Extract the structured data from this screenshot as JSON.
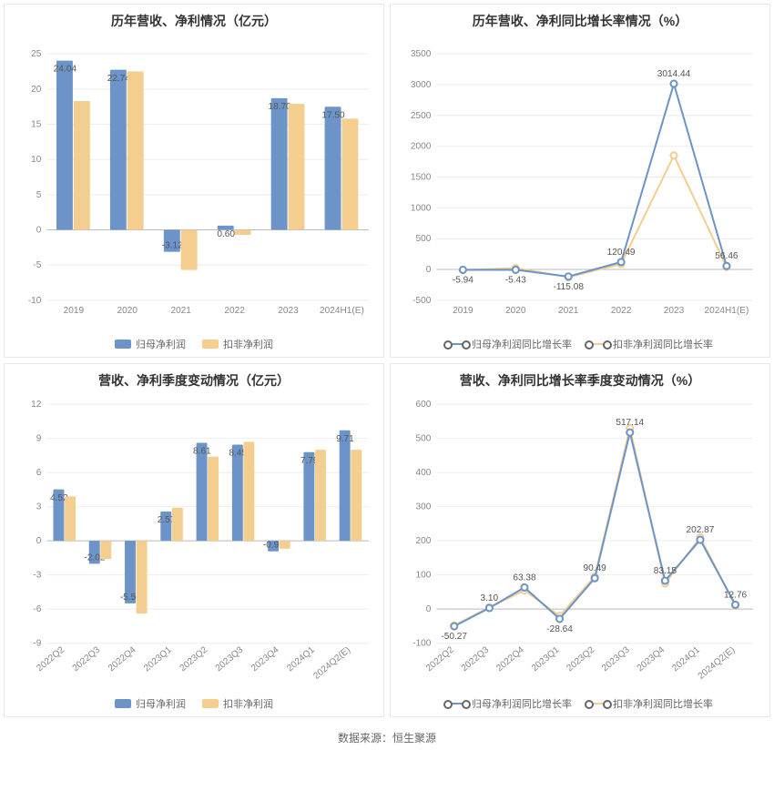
{
  "footer": "数据来源：恒生聚源",
  "colors": {
    "series_a": "#6d94c8",
    "series_b": "#f4ce8f",
    "grid": "#eeeeee",
    "axis": "#cccccc",
    "text": "#888888",
    "bg": "#ffffff"
  },
  "panels": {
    "annual_bar": {
      "type": "bar",
      "title": "历年营收、净利情况（亿元）",
      "categories": [
        "2019",
        "2020",
        "2021",
        "2022",
        "2023",
        "2024H1(E)"
      ],
      "series": [
        {
          "name": "归母净利润",
          "color": "#6d94c8",
          "values": [
            24.04,
            22.74,
            -3.12,
            0.6,
            18.7,
            17.5
          ],
          "labels": [
            "24.04",
            "22.74",
            "-3.12",
            "0.60",
            "18.70",
            "17.50"
          ]
        },
        {
          "name": "扣非净利润",
          "color": "#f4ce8f",
          "values": [
            18.3,
            22.5,
            -5.7,
            -0.7,
            17.9,
            15.8
          ],
          "labels": [
            null,
            null,
            null,
            null,
            null,
            null
          ]
        }
      ],
      "ylim": [
        -10,
        25
      ],
      "ytick_step": 5,
      "bar_width": 0.32,
      "title_fontsize": 14,
      "label_fontsize": 10
    },
    "annual_line": {
      "type": "line",
      "title": "历年营收、净利同比增长率情况（%）",
      "categories": [
        "2019",
        "2020",
        "2021",
        "2022",
        "2023",
        "2024H1(E)"
      ],
      "series": [
        {
          "name": "归母净利润同比增长率",
          "color": "#6d94c8",
          "values": [
            -5.94,
            -5.43,
            -115.08,
            120.49,
            3014.44,
            56.46
          ],
          "labels": [
            "-5.94",
            "-5.43",
            "-115.08",
            "120.49",
            "3014.44",
            "56.46"
          ]
        },
        {
          "name": "扣非净利润同比增长率",
          "color": "#f4ce8f",
          "values": [
            -10,
            22,
            -125,
            90,
            1850,
            40
          ],
          "labels": [
            null,
            null,
            null,
            null,
            null,
            null
          ]
        }
      ],
      "ylim": [
        -500,
        3500
      ],
      "ytick_step": 500,
      "marker": "circle",
      "line_width": 2,
      "title_fontsize": 14,
      "label_fontsize": 10
    },
    "quarter_bar": {
      "type": "bar",
      "title": "营收、净利季度变动情况（亿元）",
      "categories": [
        "2022Q2",
        "2022Q3",
        "2022Q4",
        "2023Q1",
        "2023Q2",
        "2023Q3",
        "2023Q4",
        "2024Q1",
        "2024Q2(E)"
      ],
      "series": [
        {
          "name": "归母净利润",
          "color": "#6d94c8",
          "values": [
            4.52,
            -2.02,
            -5.5,
            2.57,
            8.61,
            8.45,
            -0.93,
            7.79,
            9.71
          ],
          "labels": [
            "4.52",
            "-2.02",
            "-5.50",
            "2.57",
            "8.61",
            "8.45",
            "-0.93",
            "7.79",
            "9.71"
          ]
        },
        {
          "name": "扣非净利润",
          "color": "#f4ce8f",
          "values": [
            3.9,
            -1.6,
            -6.4,
            2.9,
            7.4,
            8.7,
            -0.7,
            8.0,
            8.0
          ],
          "labels": [
            null,
            null,
            null,
            null,
            null,
            null,
            null,
            null,
            null
          ]
        }
      ],
      "ylim": [
        -9,
        12
      ],
      "ytick_step": 3,
      "bar_width": 0.32,
      "rotate_x": true,
      "title_fontsize": 14,
      "label_fontsize": 10
    },
    "quarter_line": {
      "type": "line",
      "title": "营收、净利同比增长率季度变动情况（%）",
      "categories": [
        "2022Q2",
        "2022Q3",
        "2022Q4",
        "2023Q1",
        "2023Q2",
        "2023Q3",
        "2023Q4",
        "2024Q1",
        "2024Q2(E)"
      ],
      "series": [
        {
          "name": "归母净利润同比增长率",
          "color": "#6d94c8",
          "values": [
            -50.27,
            3.1,
            63.38,
            -28.64,
            90.49,
            517.14,
            83.15,
            202.87,
            12.76
          ],
          "labels": [
            "-50.27",
            "3.10",
            "63.38",
            "-28.64",
            "90.49",
            "517.14",
            "83.15",
            "202.87",
            "12.76"
          ]
        },
        {
          "name": "扣非净利润同比增长率",
          "color": "#f4ce8f",
          "values": [
            -48,
            5,
            55,
            -20,
            95,
            530,
            75,
            210,
            10
          ],
          "labels": [
            null,
            null,
            null,
            null,
            null,
            null,
            null,
            null,
            null
          ]
        }
      ],
      "ylim": [
        -100,
        600
      ],
      "ytick_step": 100,
      "marker": "circle",
      "line_width": 2,
      "rotate_x": true,
      "title_fontsize": 14,
      "label_fontsize": 10
    }
  },
  "legend_labels": {
    "bar_a": "归母净利润",
    "bar_b": "扣非净利润",
    "line_a": "归母净利润同比增长率",
    "line_b": "扣非净利润同比增长率"
  }
}
